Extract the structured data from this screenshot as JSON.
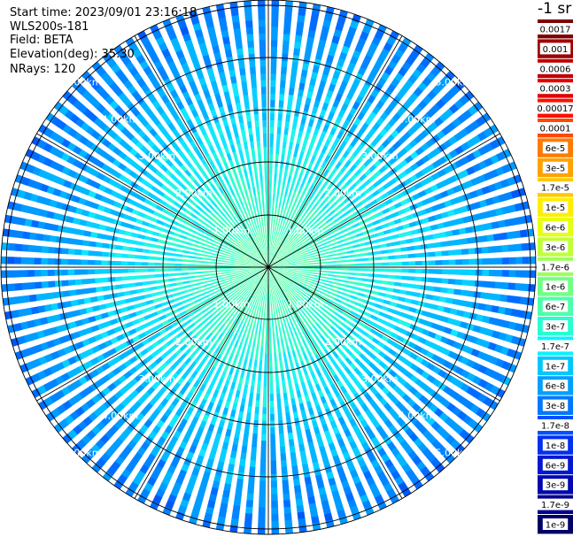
{
  "header": {
    "start_time": "Start time: 2023/09/01 23:16:18",
    "instrument": "WLS200s-181",
    "field": "Field: BETA",
    "elevation": "Elevation(deg): 35.30",
    "nrays": "NRays: 120"
  },
  "colorbar": {
    "unit": "-1 sr",
    "labels": [
      "0.0017",
      "0.001",
      "0.0006",
      "0.0003",
      "0.00017",
      "0.0001",
      "6e-5",
      "3e-5",
      "1.7e-5",
      "1e-5",
      "6e-6",
      "3e-6",
      "1.7e-6",
      "1e-6",
      "6e-7",
      "3e-7",
      "1.7e-7",
      "1e-7",
      "6e-8",
      "3e-8",
      "1.7e-8",
      "1e-8",
      "6e-9",
      "3e-9",
      "1.7e-9",
      "1e-9"
    ],
    "colors": [
      "#800000",
      "#a00000",
      "#c00000",
      "#e00000",
      "#ff1000",
      "#ff4800",
      "#ff7a00",
      "#ffa200",
      "#ffc800",
      "#ffee00",
      "#e6ff10",
      "#c0ff38",
      "#9cff5c",
      "#72ff86",
      "#4cffac",
      "#28ffd0",
      "#10f0ff",
      "#00c8ff",
      "#00a0ff",
      "#0078ff",
      "#0050ff",
      "#0030f0",
      "#0018d0",
      "#0008b0",
      "#00008c",
      "#000068"
    ]
  },
  "chart_data": {
    "type": "heatmap",
    "subtype": "polar-ppi",
    "field": "BETA",
    "elevation_deg": 35.3,
    "n_rays": 120,
    "range_rings": [
      "1.00km",
      "2.00km",
      "3.00km",
      "4.00km",
      "5.00km"
    ],
    "color_scale": "log",
    "value_range": [
      1e-09,
      0.0017
    ],
    "notes": "Backscatter near center ~1e-7 (green), decreasing outward to ~3e-8 to 6e-9 (blue)."
  }
}
